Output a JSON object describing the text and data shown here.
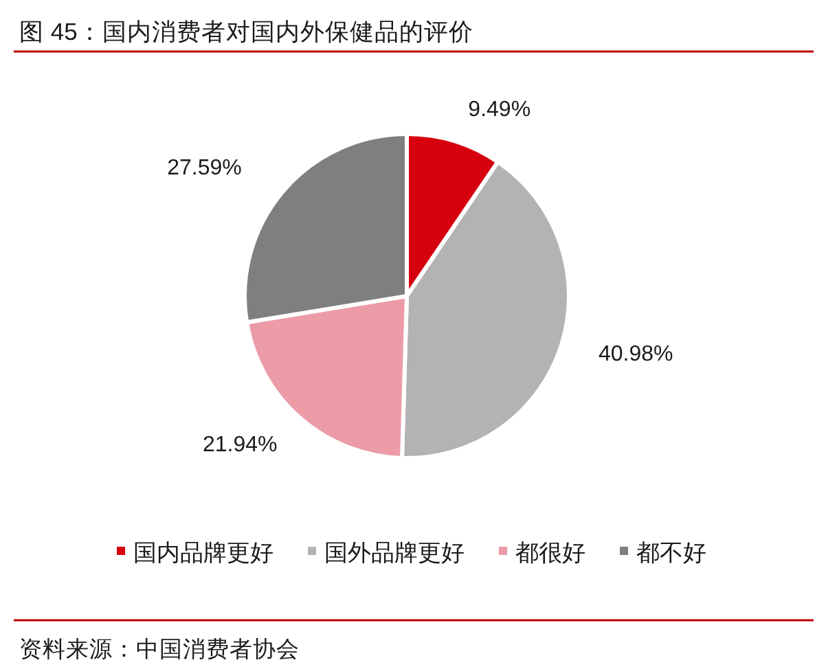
{
  "chart_data": {
    "type": "pie",
    "title": "图 45：国内消费者对国内外保健品的评价",
    "categories": [
      "国内品牌更好",
      "国外品牌更好",
      "都很好",
      "都不好"
    ],
    "values": [
      9.49,
      40.98,
      21.94,
      27.59
    ],
    "colors": [
      "#d7000f",
      "#b3b3b3",
      "#eb9ca7",
      "#7f7f7f"
    ],
    "value_labels": [
      "9.49%",
      "40.98%",
      "21.94%",
      "27.59%"
    ],
    "legend": "bottom",
    "annotations": [
      "资料来源：中国消费者协会"
    ]
  }
}
